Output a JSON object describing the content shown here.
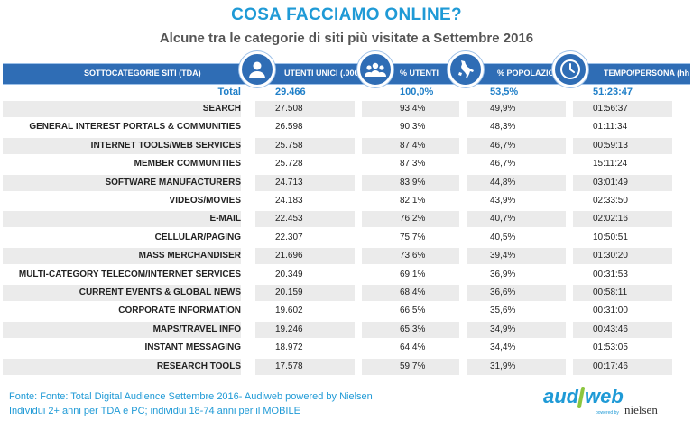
{
  "title": "COSA FACCIAMO ONLINE?",
  "subtitle": "Alcune tra le categorie di siti più visitate a Settembre 2016",
  "header": {
    "col_category": "SOTTOCATEGORIE SITI  (TDA)",
    "col_users": "UTENTI UNICI (.000)",
    "col_pct_users": "% UTENTI",
    "col_pct_pop": "% POPOLAZIONE",
    "col_time": "TEMPO/PERSONA (hh:mm)"
  },
  "icons": [
    "user-icon",
    "group-icon",
    "italy-map-icon",
    "clock-icon"
  ],
  "total": {
    "name": "Total",
    "users": "29.466",
    "pct_users": "100,0%",
    "pct_pop": "53,5%",
    "time": "51:23:47"
  },
  "rows": [
    {
      "name": "SEARCH",
      "users": "27.508",
      "pct_users": "93,4%",
      "pct_pop": "49,9%",
      "time": "01:56:37"
    },
    {
      "name": "GENERAL INTEREST PORTALS & COMMUNITIES",
      "users": "26.598",
      "pct_users": "90,3%",
      "pct_pop": "48,3%",
      "time": "01:11:34"
    },
    {
      "name": "INTERNET TOOLS/WEB SERVICES",
      "users": "25.758",
      "pct_users": "87,4%",
      "pct_pop": "46,7%",
      "time": "00:59:13"
    },
    {
      "name": "MEMBER COMMUNITIES",
      "users": "25.728",
      "pct_users": "87,3%",
      "pct_pop": "46,7%",
      "time": "15:11:24"
    },
    {
      "name": "SOFTWARE MANUFACTURERS",
      "users": "24.713",
      "pct_users": "83,9%",
      "pct_pop": "44,8%",
      "time": "03:01:49"
    },
    {
      "name": "VIDEOS/MOVIES",
      "users": "24.183",
      "pct_users": "82,1%",
      "pct_pop": "43,9%",
      "time": "02:33:50"
    },
    {
      "name": "E-MAIL",
      "users": "22.453",
      "pct_users": "76,2%",
      "pct_pop": "40,7%",
      "time": "02:02:16"
    },
    {
      "name": "CELLULAR/PAGING",
      "users": "22.307",
      "pct_users": "75,7%",
      "pct_pop": "40,5%",
      "time": "10:50:51"
    },
    {
      "name": "MASS MERCHANDISER",
      "users": "21.696",
      "pct_users": "73,6%",
      "pct_pop": "39,4%",
      "time": "01:30:20"
    },
    {
      "name": "MULTI-CATEGORY TELECOM/INTERNET SERVICES",
      "users": "20.349",
      "pct_users": "69,1%",
      "pct_pop": "36,9%",
      "time": "00:31:53"
    },
    {
      "name": "CURRENT EVENTS & GLOBAL NEWS",
      "users": "20.159",
      "pct_users": "68,4%",
      "pct_pop": "36,6%",
      "time": "00:58:11"
    },
    {
      "name": "CORPORATE INFORMATION",
      "users": "19.602",
      "pct_users": "66,5%",
      "pct_pop": "35,6%",
      "time": "00:31:00"
    },
    {
      "name": "MAPS/TRAVEL INFO",
      "users": "19.246",
      "pct_users": "65,3%",
      "pct_pop": "34,9%",
      "time": "00:43:46"
    },
    {
      "name": "INSTANT MESSAGING",
      "users": "18.972",
      "pct_users": "64,4%",
      "pct_pop": "34,4%",
      "time": "01:53:05"
    },
    {
      "name": "RESEARCH TOOLS",
      "users": "17.578",
      "pct_users": "59,7%",
      "pct_pop": "31,9%",
      "time": "00:17:46"
    }
  ],
  "footer": {
    "line1": "Fonte: Fonte: Total Digital Audience Settembre 2016- Audiweb powered by Nielsen",
    "line2": "Individui 2+ anni per TDA e PC; individui 18-74 anni per il MOBILE"
  },
  "logo": {
    "brand": "audiweb",
    "powered": "powered by",
    "partner": "nielsen"
  },
  "colors": {
    "accent": "#1f9ad6",
    "header_bg": "#2f6db5",
    "row_alt": "#ebebeb"
  }
}
